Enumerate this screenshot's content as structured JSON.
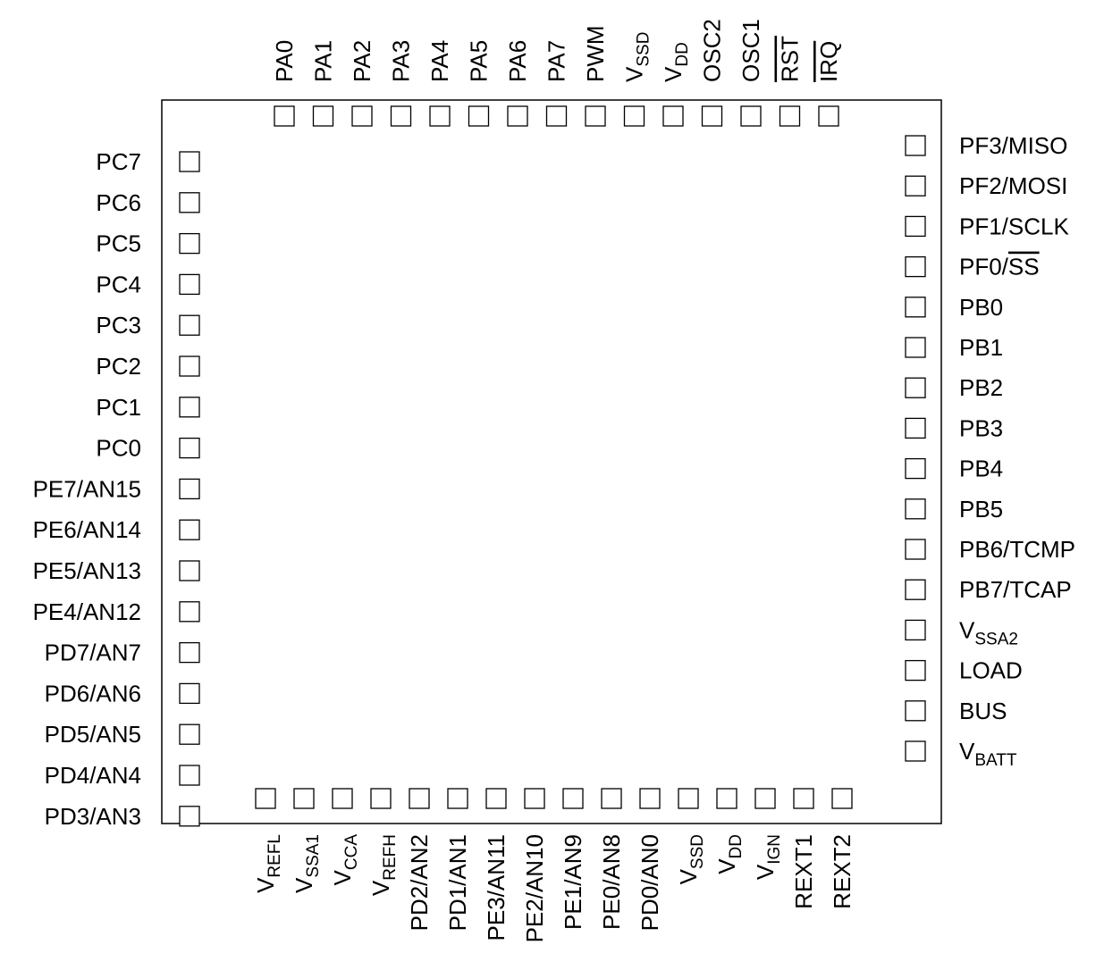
{
  "pins": {
    "top": [
      {
        "base": "PA0"
      },
      {
        "base": "PA1"
      },
      {
        "base": "PA2"
      },
      {
        "base": "PA3"
      },
      {
        "base": "PA4"
      },
      {
        "base": "PA5"
      },
      {
        "base": "PA6"
      },
      {
        "base": "PA7"
      },
      {
        "base": "PWM"
      },
      {
        "base": "V",
        "sub": "SSD"
      },
      {
        "base": "V",
        "sub": "DD"
      },
      {
        "base": "OSC2"
      },
      {
        "base": "OSC1"
      },
      {
        "base": "RST",
        "overline": true
      },
      {
        "base": "IRQ",
        "overline": true
      }
    ],
    "left": [
      {
        "base": "PC7"
      },
      {
        "base": "PC6"
      },
      {
        "base": "PC5"
      },
      {
        "base": "PC4"
      },
      {
        "base": "PC3"
      },
      {
        "base": "PC2"
      },
      {
        "base": "PC1"
      },
      {
        "base": "PC0"
      },
      {
        "base": "PE7/AN15"
      },
      {
        "base": "PE6/AN14"
      },
      {
        "base": "PE5/AN13"
      },
      {
        "base": "PE4/AN12"
      },
      {
        "base": "PD7/AN7"
      },
      {
        "base": "PD6/AN6"
      },
      {
        "base": "PD5/AN5"
      },
      {
        "base": "PD4/AN4"
      },
      {
        "base": "PD3/AN3"
      }
    ],
    "right": [
      {
        "base": "PF3/MISO"
      },
      {
        "base": "PF2/MOSI"
      },
      {
        "base": "PF1/SCLK"
      },
      {
        "base": "PF0/",
        "over": "SS"
      },
      {
        "base": "PB0"
      },
      {
        "base": "PB1"
      },
      {
        "base": "PB2"
      },
      {
        "base": "PB3"
      },
      {
        "base": "PB4"
      },
      {
        "base": "PB5"
      },
      {
        "base": "PB6/TCMP"
      },
      {
        "base": "PB7/TCAP"
      },
      {
        "base": "V",
        "sub": "SSA2"
      },
      {
        "base": "LOAD"
      },
      {
        "base": "BUS"
      },
      {
        "base": "V",
        "sub": "BATT"
      }
    ],
    "bottom": [
      {
        "base": "V",
        "sub": "REFL"
      },
      {
        "base": "V",
        "sub": "SSA1"
      },
      {
        "base": "V",
        "sub": "CCA"
      },
      {
        "base": "V",
        "sub": "REFH"
      },
      {
        "base": "PD2/AN2"
      },
      {
        "base": "PD1/AN1"
      },
      {
        "base": "PE3/AN11"
      },
      {
        "base": "PE2/AN10"
      },
      {
        "base": "PE1/AN9"
      },
      {
        "base": "PE0/AN8"
      },
      {
        "base": "PD0/AN0"
      },
      {
        "base": "V",
        "sub": "SSD"
      },
      {
        "base": "V",
        "sub": "DD"
      },
      {
        "base": "V",
        "sub": "IGN"
      },
      {
        "base": "REXT1"
      },
      {
        "base": "REXT2"
      }
    ]
  }
}
